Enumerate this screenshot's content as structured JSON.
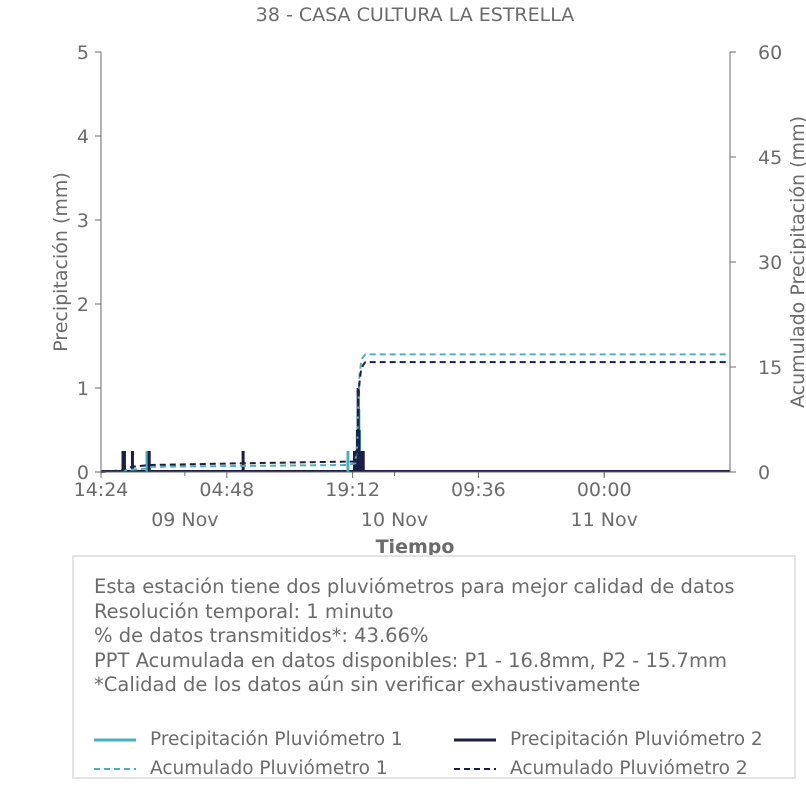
{
  "chart_data": {
    "type": "bar",
    "title": "38 - CASA CULTURA LA ESTRELLA",
    "xlabel": "Tiempo",
    "ylabel": "Precipitación (mm)",
    "y2label": "Acumulado Precipitación (mm)",
    "x_range": [
      "2023-11-08T14:24",
      "2023-11-11T14:24"
    ],
    "ylim": [
      0,
      5
    ],
    "y2lim": [
      0,
      60
    ],
    "y_ticks": [
      "0",
      "1",
      "2",
      "3",
      "4",
      "5"
    ],
    "y2_ticks": [
      "0",
      "15",
      "30",
      "45",
      "60"
    ],
    "x_ticks": [
      {
        "time": "2023-11-08T14:24",
        "label": "14:24"
      },
      {
        "time": "2023-11-09T04:48",
        "label": "04:48"
      },
      {
        "time": "2023-11-09T19:12",
        "label": "19:12"
      },
      {
        "time": "2023-11-10T09:36",
        "label": "09:36"
      },
      {
        "time": "2023-11-11T00:00",
        "label": "00:00"
      }
    ],
    "x_date_labels": [
      {
        "time": "2023-11-09T00:00",
        "label": "09 Nov"
      },
      {
        "time": "2023-11-10T00:00",
        "label": "10 Nov"
      },
      {
        "time": "2023-11-11T00:00",
        "label": "11 Nov"
      }
    ],
    "grid": false,
    "series": [
      {
        "name": "Precipitación Pluviómetro 1",
        "kind": "bar",
        "color": "#4ab0c1",
        "points": [
          {
            "t": "2023-11-08T17:00",
            "v": 0.25
          },
          {
            "t": "2023-11-08T19:40",
            "v": 0.25
          },
          {
            "t": "2023-11-08T19:50",
            "v": 0.25
          },
          {
            "t": "2023-11-09T18:40",
            "v": 0.25
          },
          {
            "t": "2023-11-09T19:30",
            "v": 0.25
          },
          {
            "t": "2023-11-09T19:40",
            "v": 0.25
          },
          {
            "t": "2023-11-09T19:50",
            "v": 0.5
          },
          {
            "t": "2023-11-09T19:55",
            "v": 0.75
          },
          {
            "t": "2023-11-09T20:00",
            "v": 0.5
          },
          {
            "t": "2023-11-09T20:10",
            "v": 0.25
          },
          {
            "t": "2023-11-09T20:20",
            "v": 0.25
          }
        ]
      },
      {
        "name": "Precipitación Pluviómetro 2",
        "kind": "bar",
        "color": "#1c1f45",
        "points": [
          {
            "t": "2023-11-08T16:55",
            "v": 0.25
          },
          {
            "t": "2023-11-08T17:05",
            "v": 0.25
          },
          {
            "t": "2023-11-08T18:00",
            "v": 0.25
          },
          {
            "t": "2023-11-08T19:55",
            "v": 0.25
          },
          {
            "t": "2023-11-09T06:40",
            "v": 0.25
          },
          {
            "t": "2023-11-09T19:25",
            "v": 0.25
          },
          {
            "t": "2023-11-09T19:45",
            "v": 0.5
          },
          {
            "t": "2023-11-09T19:50",
            "v": 1.0
          },
          {
            "t": "2023-11-09T19:55",
            "v": 0.5
          },
          {
            "t": "2023-11-09T20:00",
            "v": 0.25
          },
          {
            "t": "2023-11-09T20:05",
            "v": 0.25
          },
          {
            "t": "2023-11-09T20:15",
            "v": 0.25
          },
          {
            "t": "2023-11-09T20:25",
            "v": 0.25
          }
        ]
      },
      {
        "name": "Acumulado Pluviómetro 1",
        "kind": "line",
        "axis": "right",
        "dashed": true,
        "color": "#4ab0c1",
        "points": [
          {
            "t": "2023-11-08T14:24",
            "v": 0
          },
          {
            "t": "2023-11-08T17:00",
            "v": 0.25
          },
          {
            "t": "2023-11-08T19:40",
            "v": 0.5
          },
          {
            "t": "2023-11-08T19:50",
            "v": 0.75
          },
          {
            "t": "2023-11-09T18:40",
            "v": 1.0
          },
          {
            "t": "2023-11-09T19:30",
            "v": 1.25
          },
          {
            "t": "2023-11-09T19:45",
            "v": 4.0
          },
          {
            "t": "2023-11-09T19:50",
            "v": 9.0
          },
          {
            "t": "2023-11-09T19:55",
            "v": 12.0
          },
          {
            "t": "2023-11-09T20:00",
            "v": 14.0
          },
          {
            "t": "2023-11-09T20:10",
            "v": 15.5
          },
          {
            "t": "2023-11-09T20:20",
            "v": 16.3
          },
          {
            "t": "2023-11-09T20:40",
            "v": 16.8
          },
          {
            "t": "2023-11-11T14:24",
            "v": 16.8
          }
        ]
      },
      {
        "name": "Acumulado Pluviómetro 2",
        "kind": "line",
        "axis": "right",
        "dashed": true,
        "color": "#1c1f45",
        "points": [
          {
            "t": "2023-11-08T14:24",
            "v": 0
          },
          {
            "t": "2023-11-08T16:55",
            "v": 0.25
          },
          {
            "t": "2023-11-08T17:05",
            "v": 0.5
          },
          {
            "t": "2023-11-08T18:00",
            "v": 0.75
          },
          {
            "t": "2023-11-08T19:55",
            "v": 1.0
          },
          {
            "t": "2023-11-09T06:40",
            "v": 1.25
          },
          {
            "t": "2023-11-09T19:25",
            "v": 1.5
          },
          {
            "t": "2023-11-09T19:45",
            "v": 4.0
          },
          {
            "t": "2023-11-09T19:50",
            "v": 9.0
          },
          {
            "t": "2023-11-09T19:55",
            "v": 11.5
          },
          {
            "t": "2023-11-09T20:00",
            "v": 13.0
          },
          {
            "t": "2023-11-09T20:10",
            "v": 14.5
          },
          {
            "t": "2023-11-09T20:25",
            "v": 15.3
          },
          {
            "t": "2023-11-09T20:40",
            "v": 15.7
          },
          {
            "t": "2023-11-11T14:24",
            "v": 15.7
          }
        ]
      }
    ]
  },
  "info": {
    "line1": "Esta estación tiene dos pluviómetros para mejor calidad de datos",
    "line2": "Resolución temporal: 1 minuto",
    "line3": "% de datos transmitidos*: 43.66%",
    "line4": "PPT Acumulada en datos disponibles: P1 - 16.8mm, P2 - 15.7mm",
    "line5": "*Calidad de los datos aún sin verificar exhaustivamente"
  },
  "legend": {
    "item1": "Precipitación Pluviómetro 1",
    "item2": "Precipitación Pluviómetro 2",
    "item3": "Acumulado Pluviómetro 1",
    "item4": "Acumulado Pluviómetro 2"
  },
  "colors": {
    "p1": "#4ab0c1",
    "p2": "#1c1f45",
    "axis": "#6b6b6b",
    "box_border": "#e3e3e3"
  }
}
